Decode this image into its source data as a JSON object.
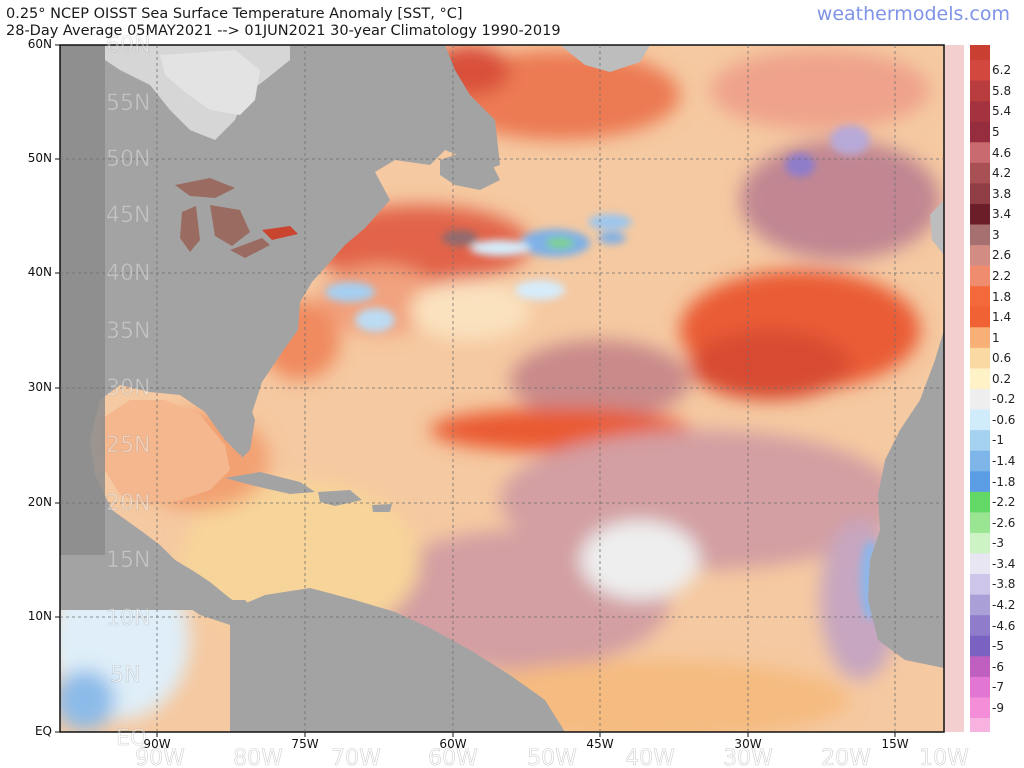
{
  "header": {
    "title_line1": "0.25° NCEP OISST Sea Surface Temperature Anomaly [SST, °C]",
    "title_line2": "28-Day Average 05MAY2021 --> 01JUN2021  30-year Climatology 1990-2019",
    "brand": "weathermodels.com"
  },
  "axes": {
    "lat_labels": [
      "60N",
      "50N",
      "40N",
      "30N",
      "20N",
      "10N",
      "EQ"
    ],
    "lat_inner_labels": [
      "60N",
      "55N",
      "50N",
      "45N",
      "40N",
      "35N",
      "30N",
      "25N",
      "20N",
      "15N",
      "10N",
      "5N",
      "EQ"
    ],
    "lon_labels": [
      "90W",
      "75W",
      "60W",
      "45W",
      "30W",
      "15W"
    ],
    "lon_inner_labels": [
      "90W",
      "80W",
      "70W",
      "60W",
      "50W",
      "40W",
      "30W",
      "20W",
      "10W"
    ]
  },
  "colorbar": {
    "ticks": [
      "6.2",
      "5.8",
      "5.4",
      "5",
      "4.6",
      "4.2",
      "3.8",
      "3.4",
      "3",
      "2.6",
      "2.2",
      "1.8",
      "1.4",
      "1",
      "0.6",
      "0.2",
      "-0.2",
      "-0.6",
      "-1",
      "-1.4",
      "-1.8",
      "-2.2",
      "-2.6",
      "-3",
      "-3.4",
      "-3.8",
      "-4.2",
      "-4.6",
      "-5",
      "-6",
      "-7",
      "-9"
    ],
    "colors": [
      "#d2473e",
      "#b93c3e",
      "#a5333f",
      "#962d3e",
      "#c86a6e",
      "#a95055",
      "#8f3e46",
      "#6b1e28",
      "#a67070",
      "#d38c84",
      "#ef8c6e",
      "#f4693b",
      "#f06133",
      "#f7b176",
      "#fbd9a2",
      "#fff2c6",
      "#eeeeee",
      "#d0ecfb",
      "#a6d2f1",
      "#7eb6ea",
      "#5c9ee6",
      "#64d866",
      "#9ae592",
      "#cdf3c4",
      "#e9e6f4",
      "#cdc6ea",
      "#ab9fd8",
      "#8f7dcc",
      "#7a62c2",
      "#bf60c0",
      "#e276d4",
      "#f48ed8"
    ],
    "endcap_color": "#f7b2e0"
  },
  "map_colors": {
    "land": "#9f9f9f",
    "land_light": "#cfcfcf",
    "ocean_base": "#f5c9a1",
    "warm1": "#f29a6c",
    "warm2": "#e9593a",
    "warm3": "#c44c48",
    "mauve": "#c79aa0",
    "cold1": "#bcdcf3",
    "cold2": "#6b9fe0",
    "neutral": "#ececec"
  }
}
